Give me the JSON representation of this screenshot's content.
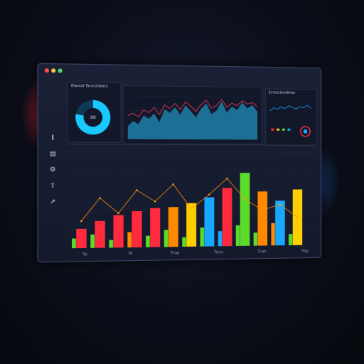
{
  "window": {
    "controls": {
      "close": "#ff4d4d",
      "minimize": "#f5c542",
      "maximize": "#5bd163"
    }
  },
  "sidebar": {
    "items": [
      {
        "icon": "info-icon",
        "glyph": "ℹ"
      },
      {
        "icon": "document-icon",
        "glyph": "▤"
      },
      {
        "icon": "settings-icon",
        "glyph": "⚙"
      },
      {
        "icon": "share-icon",
        "glyph": "⇪"
      },
      {
        "icon": "link-icon",
        "glyph": "⇗"
      }
    ]
  },
  "panels": {
    "donut": {
      "title": "Elwood Tacochsbacs",
      "center_label": "XII"
    },
    "area": {
      "title": ""
    },
    "small": {
      "title": "Evrseciocidmes"
    }
  },
  "colors": {
    "accent_cyan": "#18c8ff",
    "red": "#ff2a3d",
    "orange": "#ff8a00",
    "yellow": "#ffd000",
    "green": "#5cdc2a",
    "blue": "#19a8ff"
  },
  "chart_data": [
    {
      "type": "pie",
      "values": [
        78,
        22
      ],
      "colors": [
        "#18c8ff",
        "#0e3a57"
      ]
    },
    {
      "type": "area",
      "values": [
        30,
        42,
        35,
        55,
        48,
        60,
        40,
        70,
        62,
        75,
        58,
        80,
        66,
        52,
        72,
        85,
        60,
        68,
        90,
        64,
        78,
        70,
        88,
        74,
        82,
        66
      ],
      "line": [
        55,
        60,
        52,
        68,
        62,
        74,
        58,
        80,
        72,
        84,
        70,
        88,
        78,
        66,
        82,
        92,
        74,
        80,
        95,
        76,
        86,
        80,
        92,
        84,
        88,
        78
      ]
    },
    {
      "type": "bar",
      "series": [
        {
          "values": [
            20,
            28,
            34,
            38,
            41,
            42,
            46,
            52,
            62,
            78,
            58,
            48,
            60
          ]
        },
        {
          "values": [
            10,
            14,
            8,
            16,
            12,
            18,
            10,
            20,
            16,
            22,
            14,
            24,
            12
          ]
        }
      ],
      "line": [
        28,
        52,
        36,
        60,
        48,
        66,
        40,
        55,
        72,
        50,
        38,
        44,
        30
      ],
      "x_ticks": [
        "Sy",
        "Tif",
        "Tirag",
        "Truss",
        "Tirah",
        "Trag"
      ]
    }
  ]
}
